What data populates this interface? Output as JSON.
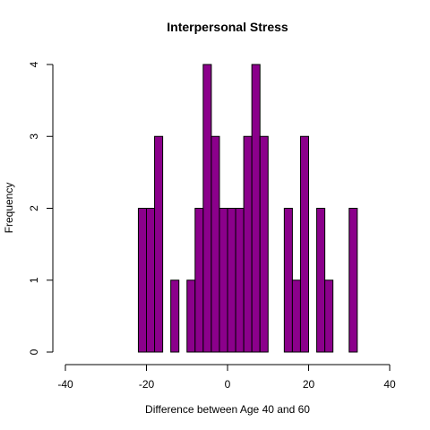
{
  "chart_data": {
    "type": "bar",
    "title": "Interpersonal Stress",
    "xlabel": "Difference between Age 40 and 60",
    "ylabel": "Frequency",
    "xlim": [
      -40,
      40
    ],
    "ylim": [
      0,
      4
    ],
    "x_ticks": [
      -40,
      -20,
      0,
      20,
      40
    ],
    "y_ticks": [
      0,
      1,
      2,
      3,
      4
    ],
    "bar_color": "#8B008B",
    "bins": [
      {
        "start": -22,
        "end": -20,
        "count": 2
      },
      {
        "start": -20,
        "end": -18,
        "count": 2
      },
      {
        "start": -18,
        "end": -16,
        "count": 3
      },
      {
        "start": -14,
        "end": -12,
        "count": 1
      },
      {
        "start": -10,
        "end": -8,
        "count": 1
      },
      {
        "start": -8,
        "end": -6,
        "count": 2
      },
      {
        "start": -6,
        "end": -4,
        "count": 4
      },
      {
        "start": -4,
        "end": -2,
        "count": 3
      },
      {
        "start": -2,
        "end": 0,
        "count": 2
      },
      {
        "start": 0,
        "end": 2,
        "count": 2
      },
      {
        "start": 2,
        "end": 4,
        "count": 2
      },
      {
        "start": 4,
        "end": 6,
        "count": 3
      },
      {
        "start": 6,
        "end": 8,
        "count": 4
      },
      {
        "start": 8,
        "end": 10,
        "count": 3
      },
      {
        "start": 14,
        "end": 16,
        "count": 2
      },
      {
        "start": 16,
        "end": 18,
        "count": 1
      },
      {
        "start": 18,
        "end": 20,
        "count": 3
      },
      {
        "start": 22,
        "end": 24,
        "count": 2
      },
      {
        "start": 24,
        "end": 26,
        "count": 1
      },
      {
        "start": 30,
        "end": 32,
        "count": 2
      }
    ]
  }
}
